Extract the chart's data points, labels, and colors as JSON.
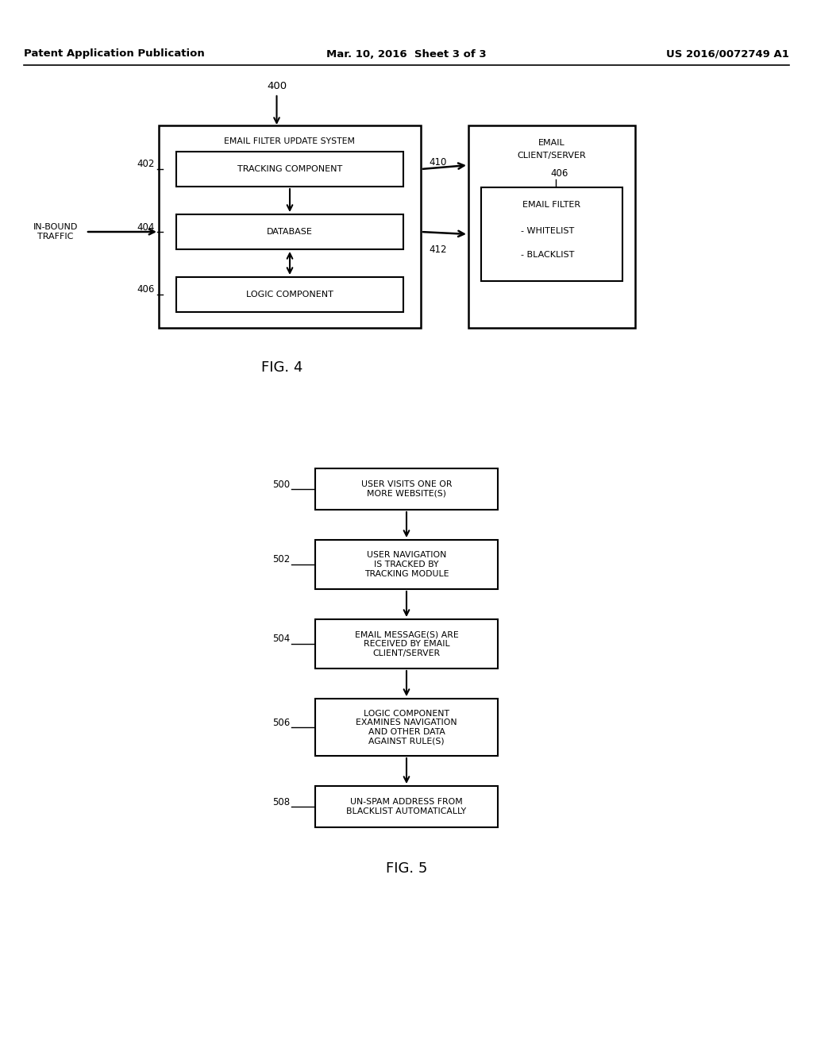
{
  "background_color": "#ffffff",
  "header_left": "Patent Application Publication",
  "header_center": "Mar. 10, 2016  Sheet 3 of 3",
  "header_right": "US 2016/0072749 A1",
  "fig4_label": "FIG. 4",
  "fig5_label": "FIG. 5",
  "fig4": {
    "label_400": "400",
    "title_400": "EMAIL FILTER UPDATE SYSTEM",
    "label_402": "402",
    "label_404": "404",
    "label_406_left": "406",
    "text_tracking": "TRACKING COMPONENT",
    "text_database": "DATABASE",
    "text_logic": "LOGIC COMPONENT",
    "label_410": "410",
    "label_412": "412",
    "text_email_cs_line1": "EMAIL",
    "text_email_cs_line2": "CLIENT/SERVER",
    "label_406_right": "406",
    "text_filter": "EMAIL FILTER",
    "text_whitelist": "- WHITELIST",
    "text_blacklist": "- BLACKLIST",
    "text_inbound": "IN-BOUND\nTRAFFIC"
  },
  "fig5": {
    "steps": [
      {
        "num": "500",
        "text": "USER VISITS ONE OR\nMORE WEBSITE(S)"
      },
      {
        "num": "502",
        "text": "USER NAVIGATION\nIS TRACKED BY\nTRACKING MODULE"
      },
      {
        "num": "504",
        "text": "EMAIL MESSAGE(S) ARE\nRECEIVED BY EMAIL\nCLIENT/SERVER"
      },
      {
        "num": "506",
        "text": "LOGIC COMPONENT\nEXAMINES NAVIGATION\nAND OTHER DATA\nAGAINST RULE(S)"
      },
      {
        "num": "508",
        "text": "UN-SPAM ADDRESS FROM\nBLACKLIST AUTOMATICALLY"
      }
    ]
  }
}
